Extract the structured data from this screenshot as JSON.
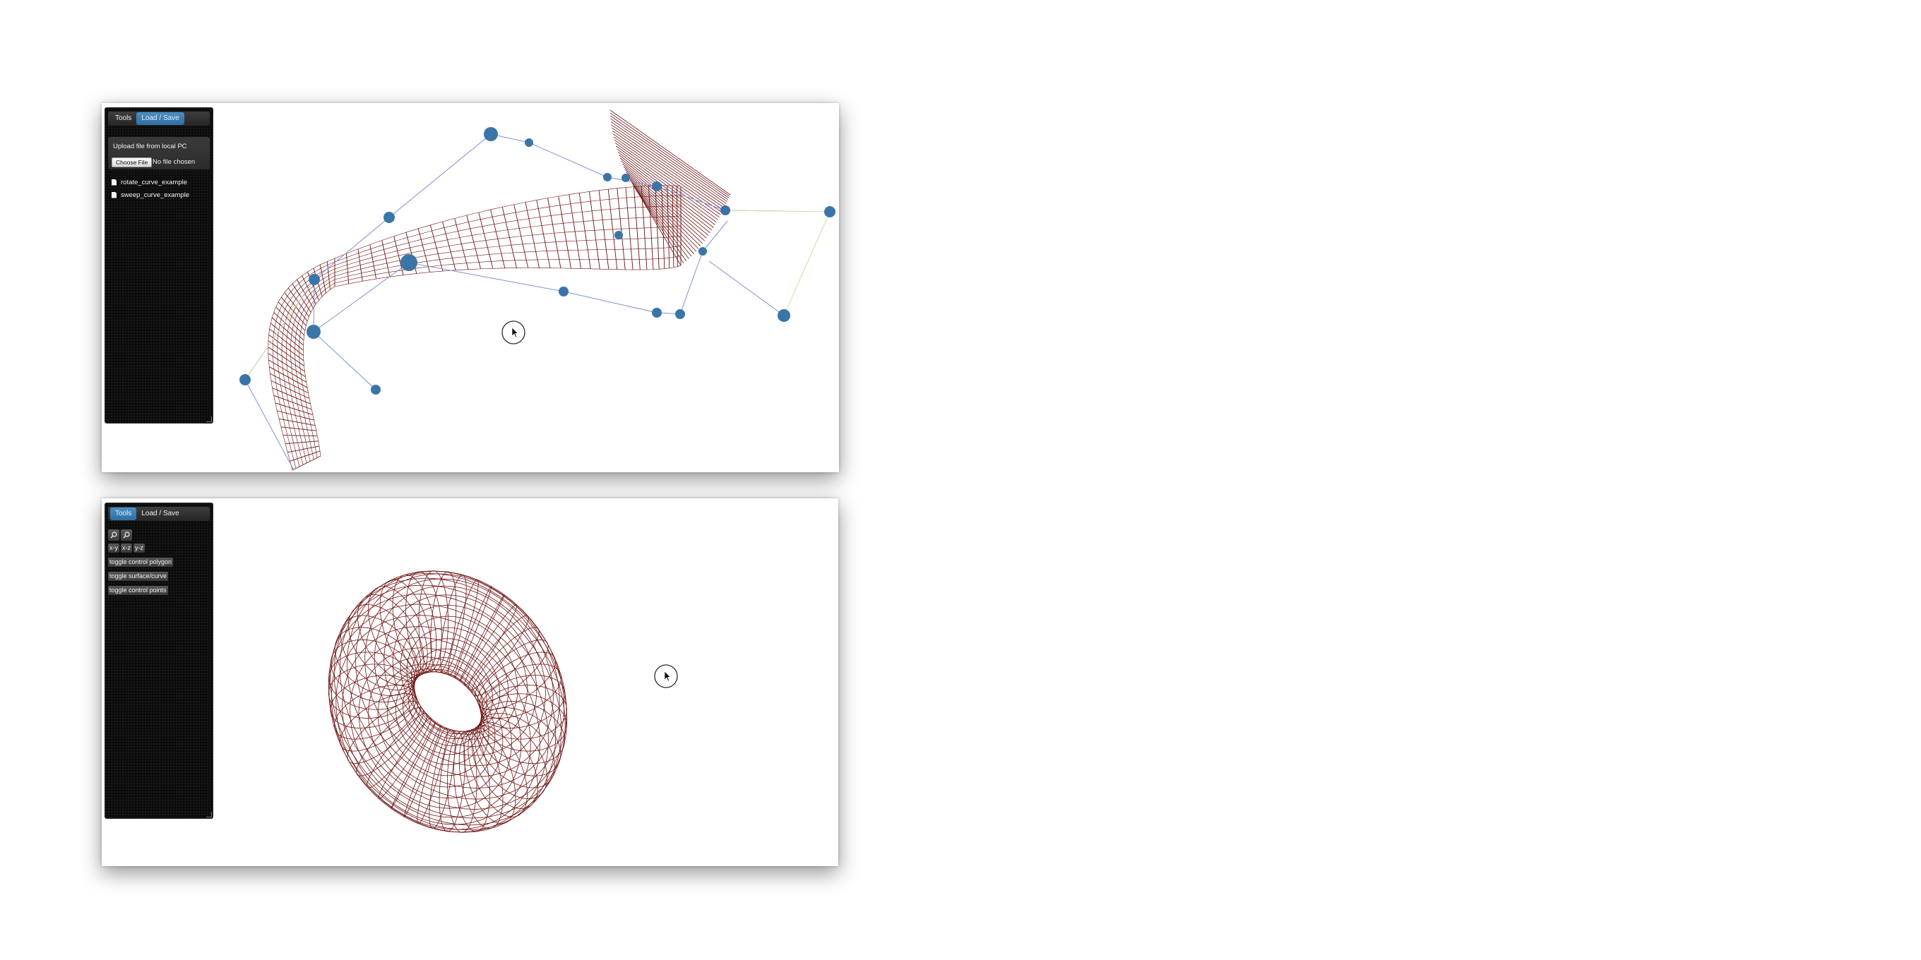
{
  "window_top": {
    "tabs": [
      "Tools",
      "Load / Save"
    ],
    "active_tab": "Load / Save",
    "upload": {
      "title": "Upload file from local PC",
      "choose_label": "Choose File",
      "no_file_text": "No file chosen"
    },
    "files": [
      "rotate_curve_example",
      "sweep_curve_example"
    ],
    "icons": {
      "file": "file-icon",
      "cursor": "mouse-pointer-icon"
    },
    "colors": {
      "surface": "#6e1414",
      "control_point": "#3a75a8",
      "control_polygon": "#7f8fd8",
      "guide_line": "#d8dc9a",
      "active_tab": "#3b7fb8"
    }
  },
  "window_bottom": {
    "tabs": [
      "Tools",
      "Load / Save"
    ],
    "active_tab": "Tools",
    "zoom_icons": [
      "zoom-in-icon",
      "zoom-out-icon"
    ],
    "view_buttons": [
      "x-y",
      "x-z",
      "y-z"
    ],
    "actions": [
      "toggle control polygon",
      "toggle surface/curve",
      "toggle control points"
    ],
    "icons": {
      "cursor": "mouse-pointer-icon"
    },
    "colors": {
      "surface": "#6e1414"
    }
  }
}
